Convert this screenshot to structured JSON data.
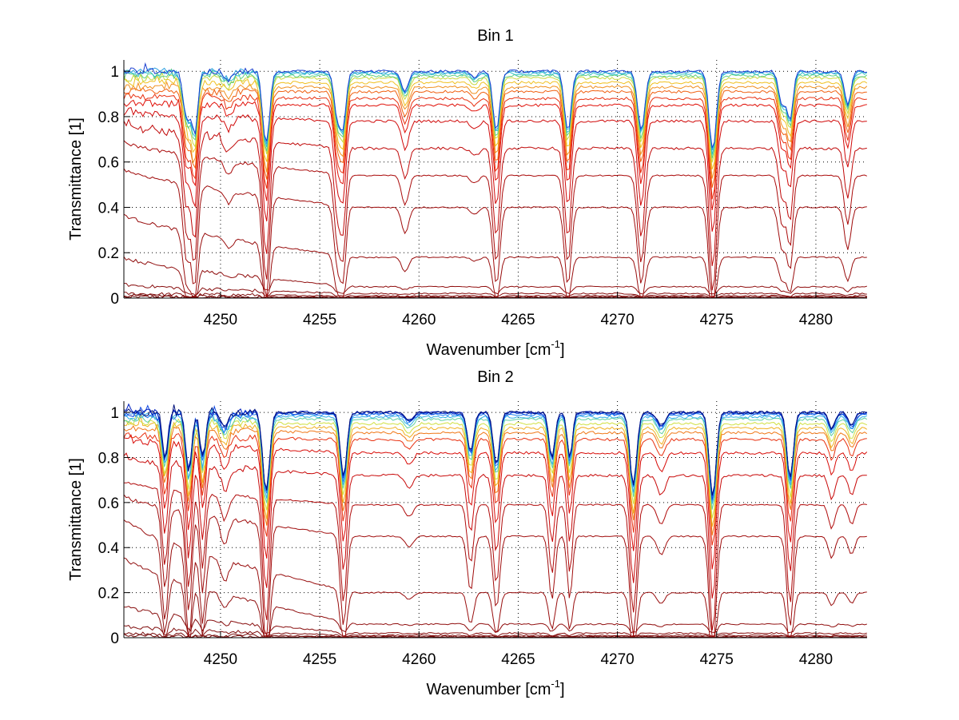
{
  "chart_data": [
    {
      "type": "line",
      "title": "Bin 1",
      "xlabel": "Wavenumber [cm",
      "xlabel_sup": "-1",
      "xlabel_end": "]",
      "ylabel": "Transmittance [1]",
      "xlim": [
        4245.13,
        4282.58
      ],
      "ylim": [
        0,
        1.05
      ],
      "xticks": [
        4250,
        4255,
        4260,
        4265,
        4270,
        4275,
        4280
      ],
      "xtick_labels": [
        "4250",
        "4255",
        "4260",
        "4265",
        "4270",
        "4275",
        "4280"
      ],
      "yticks": [
        0,
        0.2,
        0.4,
        0.6,
        0.8,
        1
      ],
      "ytick_labels": [
        "0",
        "0.2",
        "0.4",
        "0.6",
        "0.8",
        "1"
      ],
      "grid": "dotted",
      "legend": "none",
      "absorption_lines": [
        {
          "x": 4248.3,
          "depth": 0.35,
          "width": 0.18
        },
        {
          "x": 4248.7,
          "depth": 0.45,
          "width": 0.15
        },
        {
          "x": 4250.4,
          "depth": 0.06,
          "width": 0.2
        },
        {
          "x": 4252.3,
          "depth": 0.55,
          "width": 0.17
        },
        {
          "x": 4255.9,
          "depth": 0.35,
          "width": 0.17
        },
        {
          "x": 4256.2,
          "depth": 0.35,
          "width": 0.14
        },
        {
          "x": 4259.3,
          "depth": 0.15,
          "width": 0.18
        },
        {
          "x": 4262.8,
          "depth": 0.04,
          "width": 0.2
        },
        {
          "x": 4263.9,
          "depth": 0.45,
          "width": 0.17
        },
        {
          "x": 4267.5,
          "depth": 0.45,
          "width": 0.17
        },
        {
          "x": 4271.2,
          "depth": 0.45,
          "width": 0.18
        },
        {
          "x": 4274.8,
          "depth": 0.6,
          "width": 0.18
        },
        {
          "x": 4278.3,
          "depth": 0.25,
          "width": 0.17
        },
        {
          "x": 4278.7,
          "depth": 0.35,
          "width": 0.15
        },
        {
          "x": 4281.6,
          "depth": 0.25,
          "width": 0.16
        }
      ],
      "series_levels_left": [
        1.0,
        1.0,
        0.99,
        0.98,
        0.97,
        0.95,
        0.93,
        0.91,
        0.89,
        0.86,
        0.82,
        0.76,
        0.69,
        0.57,
        0.37,
        0.18,
        0.06,
        0.02,
        0.01,
        0.005
      ],
      "series_levels_right": [
        1.0,
        0.995,
        0.99,
        0.98,
        0.97,
        0.95,
        0.93,
        0.91,
        0.88,
        0.85,
        0.78,
        0.66,
        0.54,
        0.4,
        0.18,
        0.05,
        0.02,
        0.01,
        0.005,
        0.002
      ],
      "noisy_top_series": 12,
      "series_colors": [
        "#1a3fd0",
        "#2a9fe0",
        "#30c0c8",
        "#60d080",
        "#c8d840",
        "#f0c020",
        "#f09020",
        "#f06010",
        "#e83010",
        "#e01008",
        "#d00808",
        "#c00808",
        "#aa0a0a",
        "#a00c0c",
        "#980d0d",
        "#900e0e",
        "#880e0e",
        "#800e0e",
        "#780c0c",
        "#700a0a"
      ]
    },
    {
      "type": "line",
      "title": "Bin 2",
      "xlabel": "Wavenumber [cm",
      "xlabel_sup": "-1",
      "xlabel_end": "]",
      "ylabel": "Transmittance [1]",
      "xlim": [
        4245.13,
        4282.58
      ],
      "ylim": [
        0,
        1.05
      ],
      "xticks": [
        4250,
        4255,
        4260,
        4265,
        4270,
        4275,
        4280
      ],
      "xtick_labels": [
        "4250",
        "4255",
        "4260",
        "4265",
        "4270",
        "4275",
        "4280"
      ],
      "yticks": [
        0,
        0.2,
        0.4,
        0.6,
        0.8,
        1
      ],
      "ytick_labels": [
        "0",
        "0.2",
        "0.4",
        "0.6",
        "0.8",
        "1"
      ],
      "grid": "dotted",
      "legend": "none",
      "absorption_lines": [
        {
          "x": 4247.2,
          "depth": 0.35,
          "width": 0.15
        },
        {
          "x": 4248.4,
          "depth": 0.45,
          "width": 0.15
        },
        {
          "x": 4249.1,
          "depth": 0.35,
          "width": 0.14
        },
        {
          "x": 4250.2,
          "depth": 0.12,
          "width": 0.2
        },
        {
          "x": 4252.3,
          "depth": 0.6,
          "width": 0.17
        },
        {
          "x": 4256.2,
          "depth": 0.5,
          "width": 0.16
        },
        {
          "x": 4259.5,
          "depth": 0.06,
          "width": 0.2
        },
        {
          "x": 4262.6,
          "depth": 0.3,
          "width": 0.16
        },
        {
          "x": 4263.9,
          "depth": 0.4,
          "width": 0.16
        },
        {
          "x": 4266.7,
          "depth": 0.35,
          "width": 0.15
        },
        {
          "x": 4267.6,
          "depth": 0.35,
          "width": 0.13
        },
        {
          "x": 4270.8,
          "depth": 0.55,
          "width": 0.17
        },
        {
          "x": 4272.2,
          "depth": 0.1,
          "width": 0.2
        },
        {
          "x": 4274.8,
          "depth": 0.65,
          "width": 0.17
        },
        {
          "x": 4278.7,
          "depth": 0.5,
          "width": 0.16
        },
        {
          "x": 4280.8,
          "depth": 0.12,
          "width": 0.16
        },
        {
          "x": 4281.8,
          "depth": 0.1,
          "width": 0.16
        }
      ],
      "series_levels_left": [
        1.0,
        1.0,
        0.995,
        0.99,
        0.98,
        0.97,
        0.96,
        0.95,
        0.93,
        0.9,
        0.88,
        0.8,
        0.69,
        0.63,
        0.53,
        0.36,
        0.14,
        0.05,
        0.02,
        0.01
      ],
      "series_levels_right": [
        1.0,
        1.0,
        0.995,
        0.99,
        0.98,
        0.97,
        0.95,
        0.93,
        0.91,
        0.88,
        0.82,
        0.72,
        0.59,
        0.45,
        0.2,
        0.06,
        0.02,
        0.01,
        0.005,
        0.002
      ],
      "noisy_top_series": 12,
      "series_colors": [
        "#00107a",
        "#0020c0",
        "#1048e0",
        "#2080f0",
        "#30b0e8",
        "#60d0a0",
        "#d0e040",
        "#f0b020",
        "#f07818",
        "#e83010",
        "#d80c08",
        "#c80808",
        "#b00a0a",
        "#a00c0c",
        "#980d0d",
        "#900e0e",
        "#880e0e",
        "#800e0e",
        "#780c0c",
        "#700a0a"
      ]
    }
  ]
}
